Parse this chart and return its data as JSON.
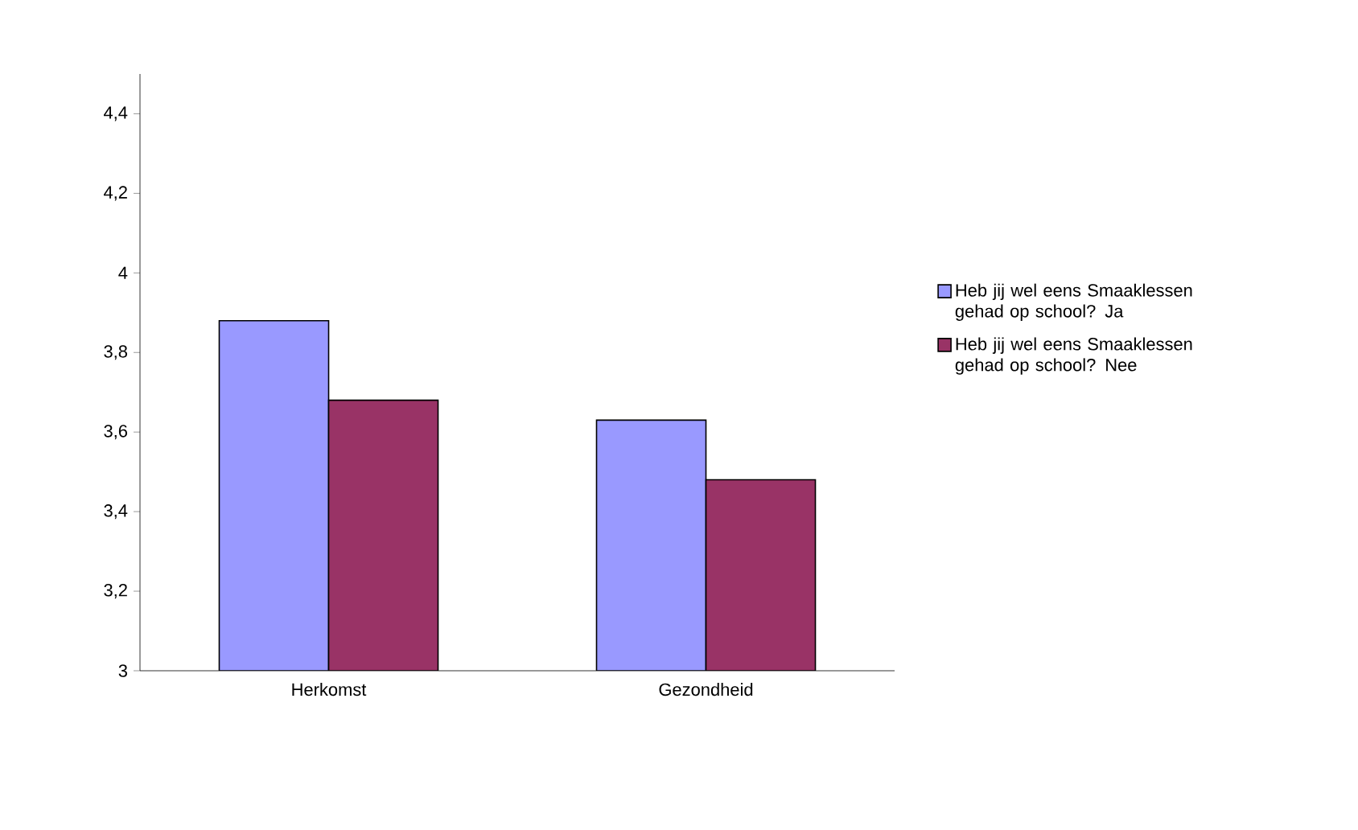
{
  "chart_data": {
    "type": "bar",
    "categories": [
      "Herkomst",
      "Gezondheid"
    ],
    "series": [
      {
        "name": "Heb jij wel eens Smaaklessen gehad op school? Ja",
        "color": "#9999ff",
        "values": [
          3.88,
          3.63
        ]
      },
      {
        "name": "Heb jij wel eens Smaaklessen gehad op school? Nee",
        "color": "#993366",
        "values": [
          3.68,
          3.48
        ]
      }
    ],
    "ylim": [
      3,
      4.5
    ],
    "yticks": [
      3,
      {
        "value": 3.2,
        "label": "3,2"
      },
      {
        "value": 3.4,
        "label": "3,4"
      },
      {
        "value": 3.6,
        "label": "3,6"
      },
      {
        "value": 3.8,
        "label": "3,8"
      },
      4,
      {
        "value": 4.2,
        "label": "4,2"
      },
      {
        "value": 4.4,
        "label": "4,4"
      }
    ],
    "grid": false,
    "legend": "right"
  }
}
